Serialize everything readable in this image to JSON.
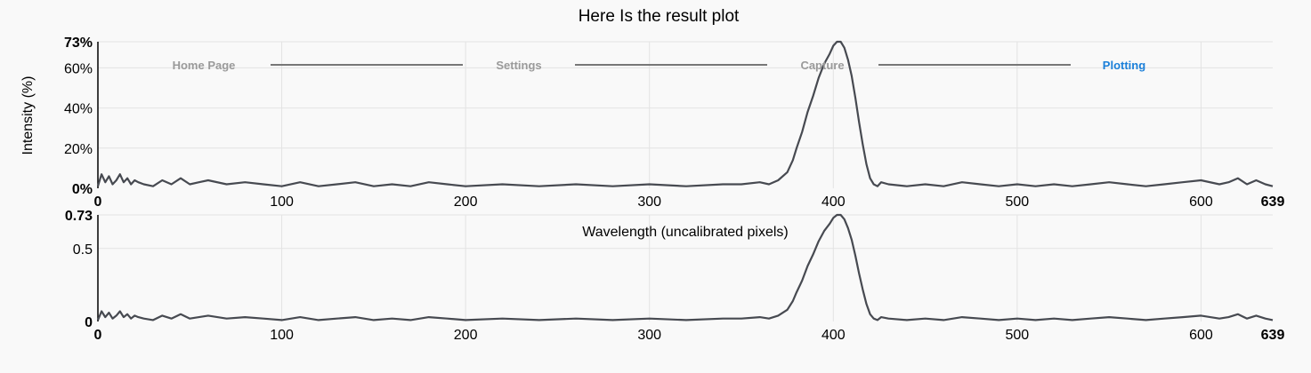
{
  "title": "Here Is the result plot",
  "stepper": {
    "steps": [
      {
        "label": "Home Page",
        "active": false
      },
      {
        "label": "Settings",
        "active": false
      },
      {
        "label": "Capture",
        "active": false
      },
      {
        "label": "Plotting",
        "active": true
      }
    ],
    "active_color": "#1a7fd9",
    "inactive_color": "#9a9a9a"
  },
  "chart_data": [
    {
      "type": "line",
      "title": "Here Is the result plot",
      "ylabel": "Intensity (%)",
      "xlabel": "",
      "xlim": [
        0,
        639
      ],
      "ylim": [
        0,
        73
      ],
      "x_ticks": [
        0,
        100,
        200,
        300,
        400,
        500,
        600,
        639
      ],
      "x_tick_labels": [
        "0",
        "100",
        "200",
        "300",
        "400",
        "500",
        "600",
        "639"
      ],
      "y_ticks": [
        0,
        20,
        40,
        60,
        73
      ],
      "y_tick_labels": [
        "0%",
        "20%",
        "40%",
        "60%",
        "73%"
      ],
      "grid": true,
      "line_color": "#474a51",
      "series": [
        {
          "x": [
            0,
            2,
            4,
            6,
            8,
            10,
            12,
            14,
            16,
            18,
            20,
            22,
            25,
            30,
            35,
            40,
            45,
            50,
            55,
            60,
            70,
            80,
            90,
            100,
            110,
            120,
            130,
            140,
            150,
            160,
            170,
            180,
            190,
            200,
            220,
            240,
            260,
            280,
            300,
            320,
            340,
            350,
            360,
            365,
            370,
            375,
            378,
            380,
            383,
            386,
            389,
            392,
            395,
            398,
            400,
            402,
            404,
            406,
            408,
            410,
            412,
            414,
            416,
            418,
            420,
            422,
            424,
            426,
            430,
            440,
            450,
            460,
            470,
            480,
            490,
            500,
            510,
            520,
            530,
            540,
            550,
            560,
            570,
            580,
            590,
            600,
            610,
            615,
            620,
            625,
            630,
            635,
            639
          ],
          "y": [
            1,
            7,
            3,
            6,
            2,
            4,
            7,
            3,
            5,
            2,
            4,
            3,
            2,
            1,
            4,
            2,
            5,
            2,
            3,
            4,
            2,
            3,
            2,
            1,
            3,
            1,
            2,
            3,
            1,
            2,
            1,
            3,
            2,
            1,
            2,
            1,
            2,
            1,
            2,
            1,
            2,
            2,
            3,
            2,
            4,
            8,
            14,
            20,
            28,
            38,
            46,
            55,
            62,
            67,
            71,
            73,
            73,
            70,
            64,
            56,
            45,
            33,
            22,
            12,
            5,
            2,
            1,
            3,
            2,
            1,
            2,
            1,
            3,
            2,
            1,
            2,
            1,
            2,
            1,
            2,
            3,
            2,
            1,
            2,
            3,
            4,
            2,
            3,
            5,
            2,
            4,
            2,
            1
          ]
        }
      ]
    },
    {
      "type": "line",
      "title": "",
      "xlabel": "Wavelength (uncalibrated pixels)",
      "ylabel": "",
      "xlim": [
        0,
        639
      ],
      "ylim": [
        0,
        0.73
      ],
      "x_ticks": [
        0,
        100,
        200,
        300,
        400,
        500,
        600,
        639
      ],
      "x_tick_labels": [
        "0",
        "100",
        "200",
        "300",
        "400",
        "500",
        "600",
        "639"
      ],
      "y_ticks": [
        0,
        0.5,
        0.73
      ],
      "y_tick_labels": [
        "0",
        "0.5",
        "0.73"
      ],
      "grid": true,
      "line_color": "#474a51",
      "series": [
        {
          "x": [
            0,
            2,
            4,
            6,
            8,
            10,
            12,
            14,
            16,
            18,
            20,
            22,
            25,
            30,
            35,
            40,
            45,
            50,
            55,
            60,
            70,
            80,
            90,
            100,
            110,
            120,
            130,
            140,
            150,
            160,
            170,
            180,
            190,
            200,
            220,
            240,
            260,
            280,
            300,
            320,
            340,
            350,
            360,
            365,
            370,
            375,
            378,
            380,
            383,
            386,
            389,
            392,
            395,
            398,
            400,
            402,
            404,
            406,
            408,
            410,
            412,
            414,
            416,
            418,
            420,
            422,
            424,
            426,
            430,
            440,
            450,
            460,
            470,
            480,
            490,
            500,
            510,
            520,
            530,
            540,
            550,
            560,
            570,
            580,
            590,
            600,
            610,
            615,
            620,
            625,
            630,
            635,
            639
          ],
          "y": [
            0.01,
            0.07,
            0.03,
            0.06,
            0.02,
            0.04,
            0.07,
            0.03,
            0.05,
            0.02,
            0.04,
            0.03,
            0.02,
            0.01,
            0.04,
            0.02,
            0.05,
            0.02,
            0.03,
            0.04,
            0.02,
            0.03,
            0.02,
            0.01,
            0.03,
            0.01,
            0.02,
            0.03,
            0.01,
            0.02,
            0.01,
            0.03,
            0.02,
            0.01,
            0.02,
            0.01,
            0.02,
            0.01,
            0.02,
            0.01,
            0.02,
            0.02,
            0.03,
            0.02,
            0.04,
            0.08,
            0.14,
            0.2,
            0.28,
            0.38,
            0.46,
            0.55,
            0.62,
            0.67,
            0.71,
            0.73,
            0.73,
            0.7,
            0.64,
            0.56,
            0.45,
            0.33,
            0.22,
            0.12,
            0.05,
            0.02,
            0.01,
            0.03,
            0.02,
            0.01,
            0.02,
            0.01,
            0.03,
            0.02,
            0.01,
            0.02,
            0.01,
            0.02,
            0.01,
            0.02,
            0.03,
            0.02,
            0.01,
            0.02,
            0.03,
            0.04,
            0.02,
            0.03,
            0.05,
            0.02,
            0.04,
            0.02,
            0.01
          ]
        }
      ]
    }
  ]
}
